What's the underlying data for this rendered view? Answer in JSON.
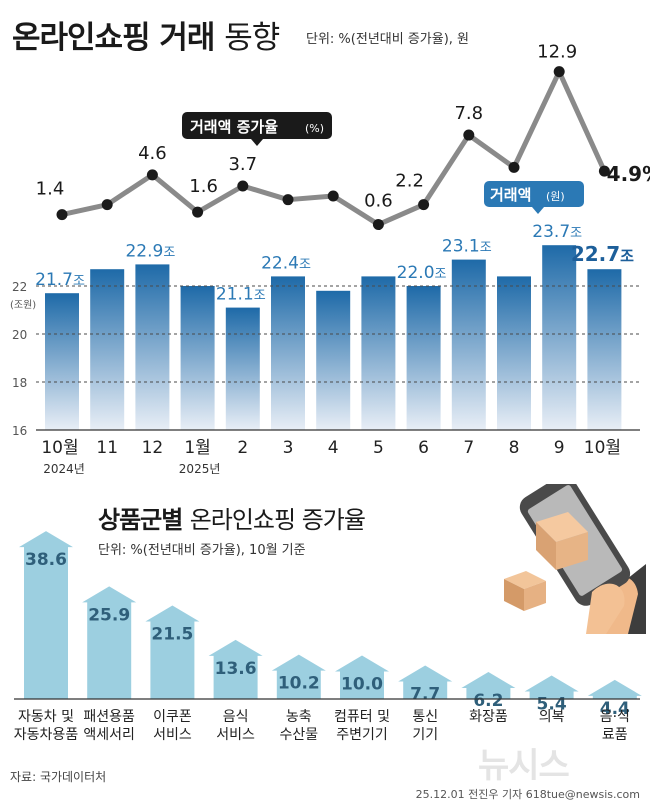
{
  "title": {
    "bold": "온라인쇼핑 거래",
    "light": "동향"
  },
  "unit_top": "단위: %(전년대비 증가율), 원",
  "chart_data": [
    {
      "type": "line",
      "name": "growth",
      "title": "거래액 증가율(%)",
      "badge_label": "거래액 증가율",
      "badge_unit": "(%)",
      "categories": [
        "10월",
        "11",
        "12",
        "1월",
        "2",
        "3",
        "4",
        "5",
        "6",
        "7",
        "8",
        "9",
        "10월"
      ],
      "values": [
        1.4,
        2.2,
        4.6,
        1.6,
        3.7,
        2.6,
        2.9,
        0.6,
        2.2,
        7.8,
        5.2,
        12.9,
        4.9
      ],
      "labels": [
        "1.4",
        "",
        "4.6",
        "1.6",
        "3.7",
        "",
        "",
        "0.6",
        "2.2",
        "7.8",
        "",
        "12.9",
        "4.9%"
      ],
      "ylim": [
        0,
        14
      ],
      "color": "#8a8a8a"
    },
    {
      "type": "bar",
      "name": "amount",
      "title": "거래액(원)",
      "badge_label": "거래액",
      "badge_unit": "(원)",
      "categories": [
        "10월",
        "11",
        "12",
        "1월",
        "2",
        "3",
        "4",
        "5",
        "6",
        "7",
        "8",
        "9",
        "10월"
      ],
      "sublabels": [
        "2024년",
        "",
        "",
        "2025년",
        "",
        "",
        "",
        "",
        "",
        "",
        "",
        "",
        ""
      ],
      "values": [
        21.7,
        22.7,
        22.9,
        22.0,
        21.1,
        22.4,
        21.8,
        22.4,
        22.0,
        23.1,
        22.4,
        23.7,
        22.7
      ],
      "labels": [
        "21.7",
        "",
        "22.9",
        "",
        "21.1",
        "22.4",
        "",
        "",
        "22.0",
        "23.1",
        "",
        "23.7",
        "22.7"
      ],
      "label_unit": "조",
      "ylabel": "(조원)",
      "yticks": [
        16,
        18,
        20,
        22
      ],
      "ylim": [
        16,
        24
      ],
      "grid": true,
      "color": "#1e6aa8"
    },
    {
      "type": "bar",
      "name": "category",
      "title": "상품군별 온라인쇼핑 증가율",
      "title_bold": "상품군별",
      "title_light": "온라인쇼핑 증가율",
      "unit": "단위: %(전년대비 증가율), 10월 기준",
      "categories": [
        [
          "자동차 및",
          "자동차용품"
        ],
        [
          "패션용품",
          "액세서리"
        ],
        [
          "이쿠폰",
          "서비스"
        ],
        [
          "음식",
          "서비스"
        ],
        [
          "농축",
          "수산물"
        ],
        [
          "컴퓨터 및",
          "주변기기"
        ],
        [
          "통신",
          "기기"
        ],
        [
          "화장품"
        ],
        [
          "의복"
        ],
        [
          "음·식",
          "료품"
        ]
      ],
      "values": [
        38.6,
        25.9,
        21.5,
        13.6,
        10.2,
        10.0,
        7.7,
        6.2,
        5.4,
        4.4
      ],
      "labels": [
        "38.6",
        "25.9",
        "21.5",
        "13.6",
        "10.2",
        "10.0",
        "7.7",
        "6.2",
        "5.4",
        "4.4"
      ],
      "ylim": [
        0,
        40
      ],
      "color": "#9ccfe0"
    }
  ],
  "source": "자료: 국가데이터처",
  "credit": "25.12.01 전진우 기자 618tue@newsis.com",
  "watermark": "뉴시스",
  "colors": {
    "bar_dark": "#1e6aa8",
    "bar_light": "#e8eef6",
    "label_blue": "#2b79b5",
    "line": "#8a8a8a",
    "arrow": "#9ccfe0"
  },
  "icons": [
    "phone-hand-icon",
    "parcel-box-icon"
  ]
}
